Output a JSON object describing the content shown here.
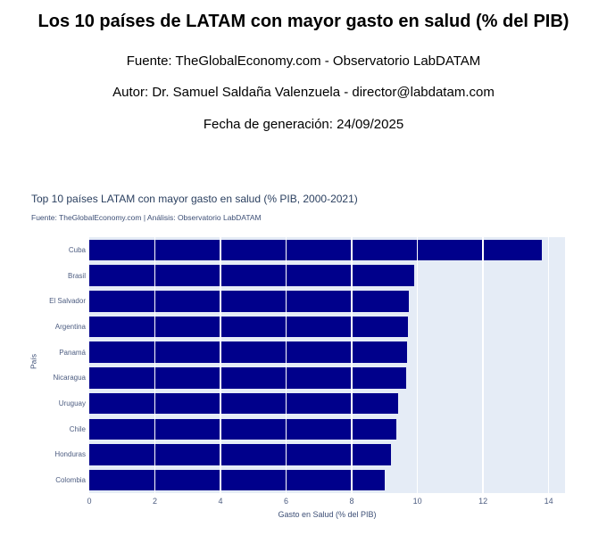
{
  "page": {
    "title": "Los 10 países de LATAM con mayor gasto en salud (% del PIB)",
    "source_line": "Fuente: TheGlobalEconomy.com - Observatorio LabDATAM",
    "author_line": "Autor: Dr. Samuel Saldaña Valenzuela - director@labdatam.com",
    "date_line": "Fecha de generación: 24/09/2025"
  },
  "chart_data": {
    "type": "bar",
    "orientation": "horizontal",
    "title": "Top 10 países LATAM con mayor gasto en salud (% PIB, 2000-2021)",
    "subtitle": "Fuente: TheGlobalEconomy.com | Análisis: Observatorio LabDATAM",
    "xlabel": "Gasto en Salud (% del PIB)",
    "ylabel": "País",
    "categories": [
      "Cuba",
      "Brasil",
      "El Salvador",
      "Argentina",
      "Panamá",
      "Nicaragua",
      "Uruguay",
      "Chile",
      "Honduras",
      "Colombia"
    ],
    "values": [
      13.8,
      9.9,
      9.75,
      9.72,
      9.68,
      9.66,
      9.4,
      9.35,
      9.2,
      9.0
    ],
    "xlim": [
      0,
      14.5
    ],
    "xticks": [
      0,
      2,
      4,
      6,
      8,
      10,
      12,
      14
    ],
    "grid": true,
    "legend": false,
    "colors": {
      "bar": "#00008B",
      "plot_bg": "#E5ECF6",
      "grid": "#FFFFFF",
      "title_text": "#2a3f5f",
      "subtitle_text": "#3d4f76",
      "tick_text": "#4c5c80",
      "axis_title_text": "#3d4f76"
    }
  }
}
